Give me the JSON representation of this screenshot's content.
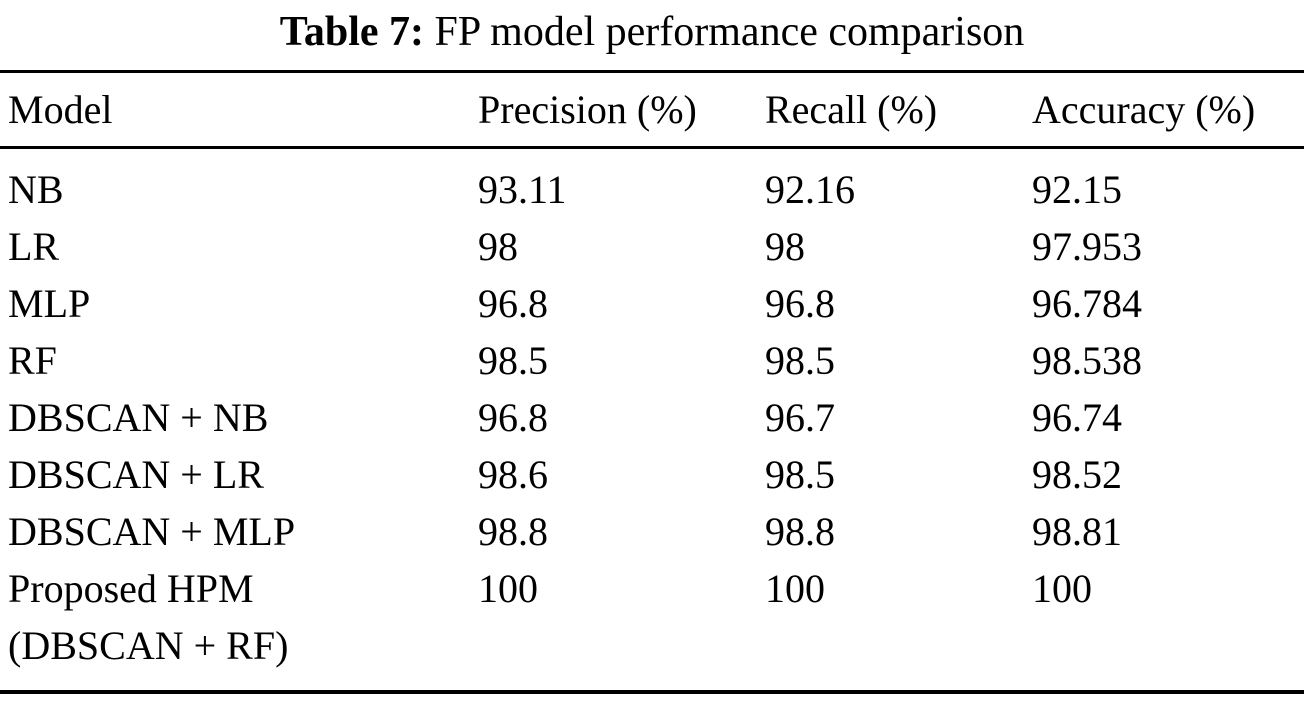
{
  "caption": {
    "label": "Table 7:",
    "text": "FP model performance comparison"
  },
  "table": {
    "columns": [
      "Model",
      "Precision (%)",
      "Recall (%)",
      "Accuracy (%)"
    ],
    "rows": [
      {
        "model": "NB",
        "precision": "93.11",
        "recall": "92.16",
        "accuracy": "92.15"
      },
      {
        "model": "LR",
        "precision": "98",
        "recall": "98",
        "accuracy": "97.953"
      },
      {
        "model": "MLP",
        "precision": "96.8",
        "recall": "96.8",
        "accuracy": "96.784"
      },
      {
        "model": "RF",
        "precision": "98.5",
        "recall": "98.5",
        "accuracy": "98.538"
      },
      {
        "model": "DBSCAN + NB",
        "precision": "96.8",
        "recall": "96.7",
        "accuracy": "96.74"
      },
      {
        "model": "DBSCAN + LR",
        "precision": "98.6",
        "recall": "98.5",
        "accuracy": "98.52"
      },
      {
        "model": "DBSCAN + MLP",
        "precision": "98.8",
        "recall": "98.8",
        "accuracy": "98.81"
      },
      {
        "model": "Proposed HPM\n(DBSCAN + RF)",
        "precision": "100",
        "recall": "100",
        "accuracy": "100"
      }
    ]
  }
}
